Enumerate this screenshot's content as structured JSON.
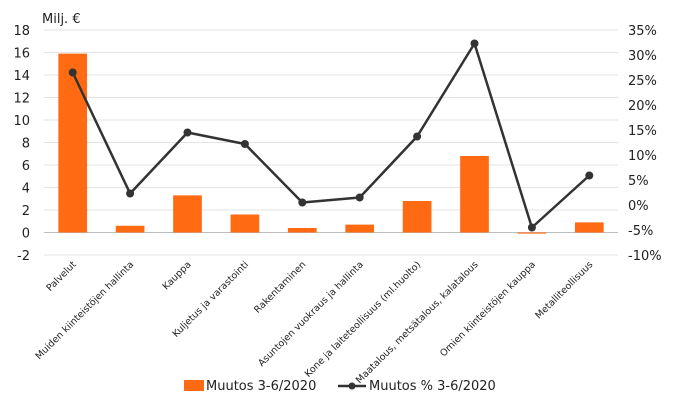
{
  "chart_data": {
    "type": "bar+line",
    "y_unit_label": "Milj. €",
    "categories": [
      "Palvelut",
      "Muiden kiinteistöjen hallinta",
      "Kauppa",
      "Kuljetus ja varastointi",
      "Rakentaminen",
      "Asuntojen vuokraus ja hallinta",
      "Kone ja laiteteollisuus (ml.huolto)",
      "Maatalous, metsätalous, kalatalous",
      "Omien kiinteistöjen kauppa",
      "Metalliteollisuus"
    ],
    "series": [
      {
        "name": "Muutos 3-6/2020",
        "type": "bar",
        "axis": "left",
        "color": "#ff6a13",
        "values": [
          15.9,
          0.6,
          3.3,
          1.6,
          0.4,
          0.7,
          2.8,
          6.8,
          -0.1,
          0.9
        ]
      },
      {
        "name": "Muutos % 3-6/2020",
        "type": "line",
        "axis": "right",
        "color": "#333333",
        "values": [
          26.5,
          2.3,
          14.5,
          12.2,
          0.5,
          1.5,
          13.7,
          32.3,
          -4.5,
          5.9
        ]
      }
    ],
    "y_left": {
      "min": -2,
      "max": 18,
      "ticks": [
        "-2",
        "0",
        "2",
        "4",
        "6",
        "8",
        "10",
        "12",
        "14",
        "16",
        "18"
      ]
    },
    "y_right": {
      "min": -10,
      "max": 35,
      "ticks": [
        "-10%",
        "-5%",
        "0%",
        "5%",
        "10%",
        "15%",
        "20%",
        "25%",
        "30%",
        "35%"
      ]
    },
    "grid": true,
    "legend_position": "bottom"
  }
}
